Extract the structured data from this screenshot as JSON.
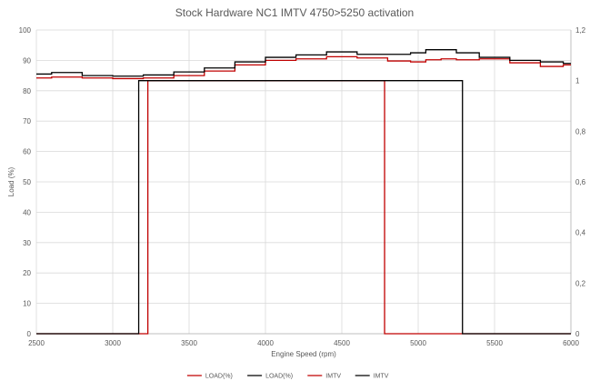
{
  "chart_data": {
    "type": "line",
    "title": "Stock Hardware NC1 IMTV 4750>5250 activation",
    "xlabel": "Engine Speed (rpm)",
    "ylabel": "Load (%)",
    "y2label": "",
    "xlim": [
      2500,
      6000
    ],
    "ylim": [
      0,
      100
    ],
    "y2lim": [
      0,
      1.2
    ],
    "x_ticks": [
      "2500",
      "3000",
      "3500",
      "4000",
      "4500",
      "5000",
      "5500",
      "6000"
    ],
    "y_ticks": [
      "0",
      "10",
      "20",
      "30",
      "40",
      "50",
      "60",
      "70",
      "80",
      "90",
      "100"
    ],
    "y2_ticks": [
      "0",
      "0,2",
      "0,4",
      "0,6",
      "0,8",
      "1",
      "1,2"
    ],
    "grid": true,
    "legend_position": "bottom",
    "series": [
      {
        "name": "LOAD(%)",
        "color": "#c00000",
        "axis": "left",
        "points": [
          [
            2500,
            84.2
          ],
          [
            2700,
            84.5
          ],
          [
            2900,
            84.2
          ],
          [
            3100,
            84.0
          ],
          [
            3300,
            84.2
          ],
          [
            3500,
            85.0
          ],
          [
            3700,
            86.5
          ],
          [
            3900,
            88.5
          ],
          [
            4100,
            90.0
          ],
          [
            4300,
            90.5
          ],
          [
            4500,
            91.2
          ],
          [
            4700,
            90.8
          ],
          [
            4900,
            89.8
          ],
          [
            5000,
            89.5
          ],
          [
            5100,
            90.2
          ],
          [
            5200,
            90.5
          ],
          [
            5300,
            90.2
          ],
          [
            5500,
            90.5
          ],
          [
            5700,
            89.2
          ],
          [
            5900,
            88.0
          ],
          [
            6000,
            88.5
          ]
        ]
      },
      {
        "name": "LOAD(%)",
        "color": "#000000",
        "axis": "left",
        "points": [
          [
            2500,
            85.5
          ],
          [
            2700,
            86.0
          ],
          [
            2900,
            85.0
          ],
          [
            3100,
            84.8
          ],
          [
            3300,
            85.2
          ],
          [
            3500,
            86.2
          ],
          [
            3700,
            87.5
          ],
          [
            3900,
            89.5
          ],
          [
            4100,
            91.0
          ],
          [
            4300,
            91.8
          ],
          [
            4500,
            92.8
          ],
          [
            4700,
            92.0
          ],
          [
            4900,
            92.0
          ],
          [
            5000,
            92.5
          ],
          [
            5100,
            93.5
          ],
          [
            5200,
            93.5
          ],
          [
            5300,
            92.5
          ],
          [
            5500,
            91.0
          ],
          [
            5700,
            90.0
          ],
          [
            5900,
            89.5
          ],
          [
            6000,
            89.0
          ]
        ]
      },
      {
        "name": "IMTV",
        "color": "#c00000",
        "axis": "right",
        "step": true,
        "points": [
          [
            2500,
            0
          ],
          [
            3230,
            0
          ],
          [
            3230,
            1
          ],
          [
            4780,
            1
          ],
          [
            4780,
            0
          ],
          [
            6000,
            0
          ]
        ]
      },
      {
        "name": "IMTV",
        "color": "#000000",
        "axis": "right",
        "step": true,
        "points": [
          [
            2500,
            0
          ],
          [
            3170,
            0
          ],
          [
            3170,
            1
          ],
          [
            5290,
            1
          ],
          [
            5290,
            0
          ],
          [
            6000,
            0
          ]
        ]
      }
    ]
  }
}
